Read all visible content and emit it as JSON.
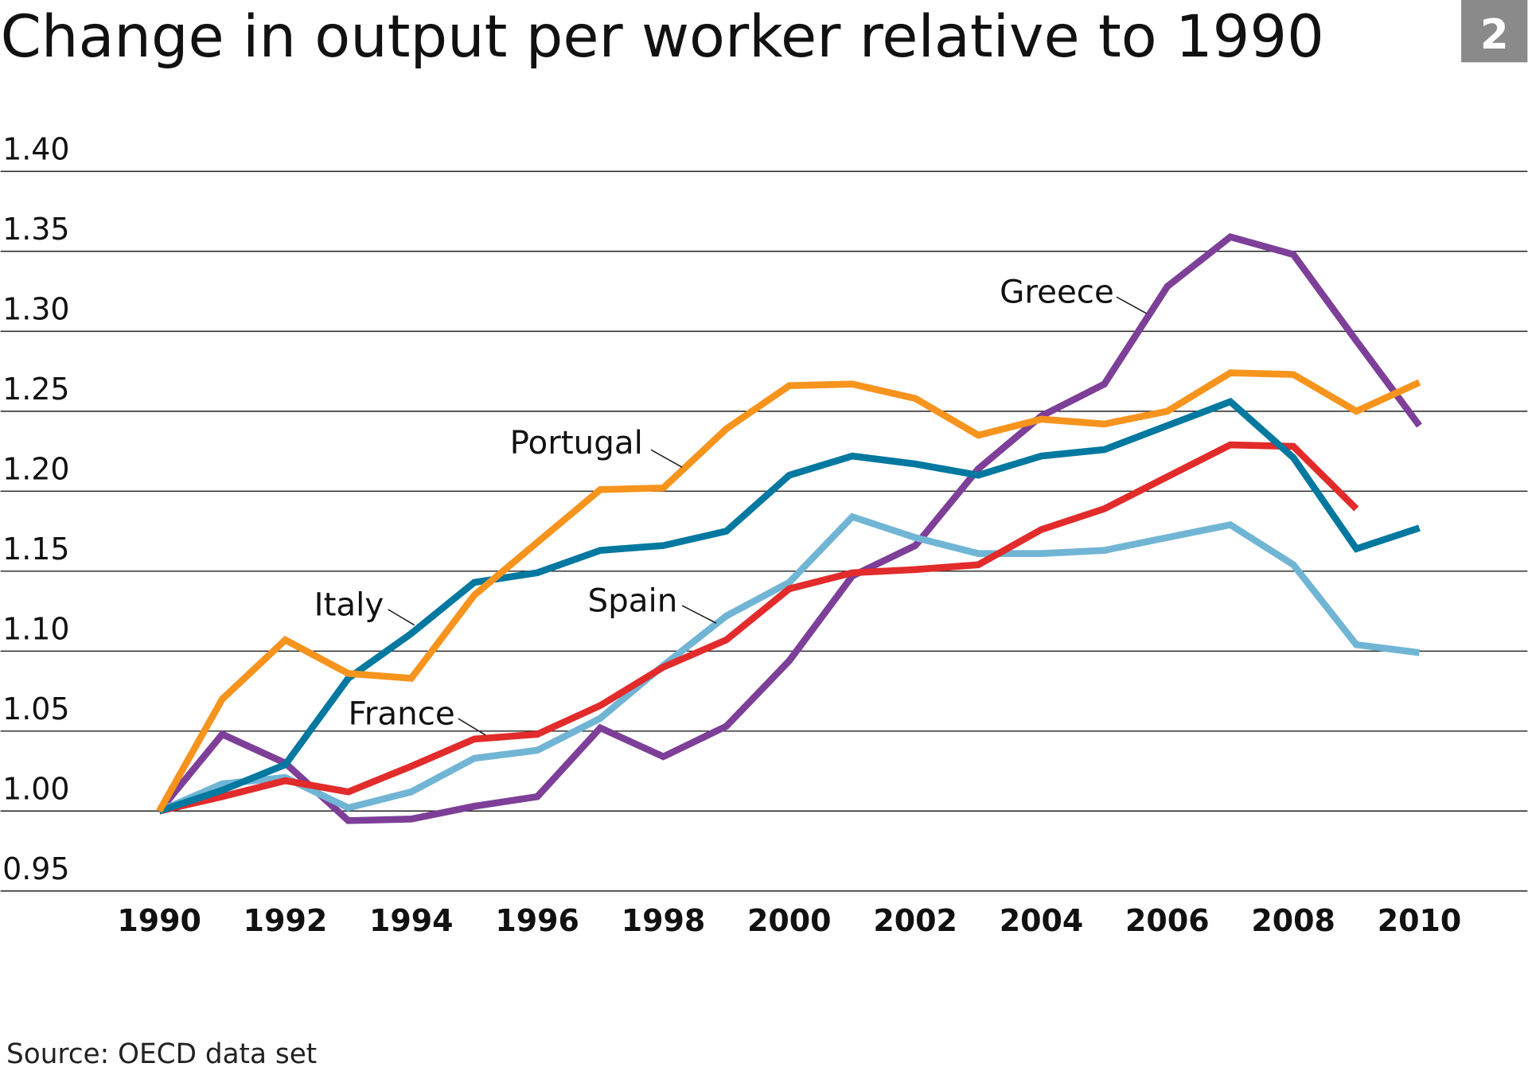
{
  "badge": "2",
  "source": "Source: OECD data set",
  "chart_data": {
    "type": "line",
    "title": "Change in output per worker relative to 1990",
    "xlabel": "",
    "ylabel": "",
    "ylim": [
      0.95,
      1.4
    ],
    "xlim": [
      1990,
      2010
    ],
    "grid": true,
    "y_ticks": [
      "0.95",
      "1.00",
      "1.05",
      "1.10",
      "1.15",
      "1.20",
      "1.25",
      "1.30",
      "1.35",
      "1.40"
    ],
    "x_ticks": [
      "1990",
      "1992",
      "1994",
      "1996",
      "1998",
      "2000",
      "2002",
      "2004",
      "2006",
      "2008",
      "2010"
    ],
    "x": [
      1990,
      1991,
      1992,
      1993,
      1994,
      1995,
      1996,
      1997,
      1998,
      1999,
      2000,
      2001,
      2002,
      2003,
      2004,
      2005,
      2006,
      2007,
      2008,
      2009,
      2010
    ],
    "series": [
      {
        "name": "Portugal",
        "color": "#f7941d",
        "values": [
          1.0,
          1.07,
          1.107,
          1.086,
          1.083,
          1.135,
          1.168,
          1.201,
          1.202,
          1.239,
          1.266,
          1.267,
          1.258,
          1.235,
          1.245,
          1.242,
          1.25,
          1.274,
          1.273,
          1.25,
          1.268
        ]
      },
      {
        "name": "Italy",
        "color": "#00789f",
        "values": [
          1.0,
          1.013,
          1.029,
          1.083,
          1.111,
          1.143,
          1.149,
          1.163,
          1.166,
          1.175,
          1.21,
          1.222,
          1.217,
          1.21,
          1.222,
          1.226,
          1.241,
          1.256,
          1.221,
          1.164,
          1.177
        ]
      },
      {
        "name": "France",
        "color": "#e22b2b",
        "values": [
          1.0,
          1.009,
          1.019,
          1.012,
          1.028,
          1.045,
          1.048,
          1.066,
          1.09,
          1.107,
          1.139,
          1.149,
          1.151,
          1.154,
          1.176,
          1.189,
          1.209,
          1.229,
          1.228,
          1.189,
          null
        ]
      },
      {
        "name": "Spain",
        "color": "#71b5d5",
        "values": [
          1.0,
          1.017,
          1.021,
          1.002,
          1.012,
          1.033,
          1.038,
          1.058,
          1.091,
          1.122,
          1.143,
          1.184,
          1.171,
          1.161,
          1.161,
          1.163,
          1.171,
          1.179,
          1.154,
          1.104,
          1.099
        ]
      },
      {
        "name": "Greece",
        "color": "#7d3f98",
        "values": [
          1.0,
          1.048,
          1.03,
          0.994,
          0.995,
          1.003,
          1.009,
          1.052,
          1.034,
          1.053,
          1.094,
          1.147,
          1.166,
          1.214,
          1.247,
          1.267,
          1.328,
          1.359,
          1.348,
          1.294,
          1.241
        ]
      }
    ]
  }
}
